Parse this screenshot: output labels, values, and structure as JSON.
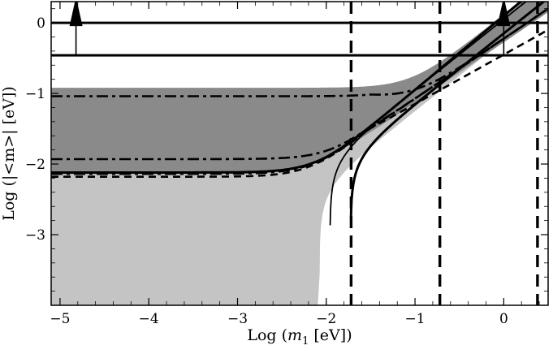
{
  "chart_data": {
    "type": "area",
    "xlabel_prefix": "Log (",
    "xlabel_var": "m",
    "xlabel_sub": "1",
    "xlabel_suffix": " [eV])",
    "ylabel": "Log (|<m>| [eV])",
    "xlim": [
      -5.1,
      0.5
    ],
    "ylim": [
      -4.0,
      0.3
    ],
    "x_ticks": [
      {
        "value": -5,
        "label": "−5"
      },
      {
        "value": -4,
        "label": "−4"
      },
      {
        "value": -3,
        "label": "−3"
      },
      {
        "value": -2,
        "label": "−2"
      },
      {
        "value": -1,
        "label": "−1"
      },
      {
        "value": 0,
        "label": "0"
      }
    ],
    "y_ticks": [
      {
        "value": 0,
        "label": "0"
      },
      {
        "value": -1,
        "label": "−1"
      },
      {
        "value": -2,
        "label": "−2"
      },
      {
        "value": -3,
        "label": "−3"
      }
    ],
    "colors": {
      "light_region": "#c4c4c4",
      "dark_region": "#8a8a8a",
      "lines": "#000000"
    },
    "horizontal_limits": [
      {
        "y": 0.0,
        "arrow_x": -4.82
      },
      {
        "y": -0.46,
        "arrow_x": 0.0
      }
    ],
    "vertical_dashed_x": [
      -1.72,
      -0.72,
      0.38
    ],
    "hierarchies": [
      {
        "m0": 0.0084,
        "y_min": -3.72,
        "y_max": -2.12
      },
      {
        "m0": 0.0024,
        "y_min": -2.18,
        "y_max": -1.04
      }
    ],
    "solid_upper_m0": 0.0074,
    "solid_inner_m0": 0.0024,
    "dashdot_levels": [
      -1.04,
      -1.93,
      -2.14
    ],
    "dashed_levels": [
      -2.18
    ]
  }
}
